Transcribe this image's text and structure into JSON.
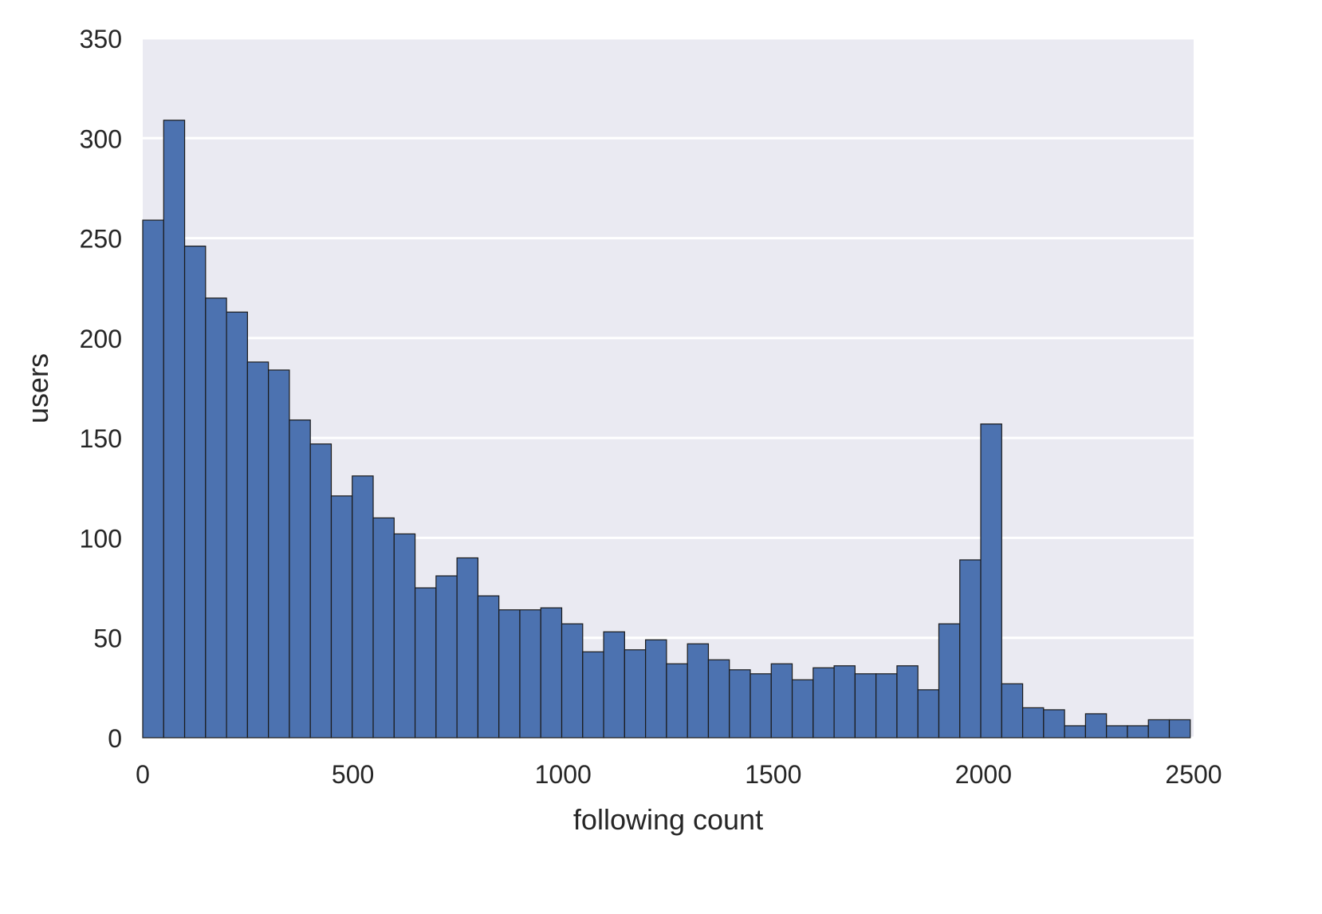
{
  "chart_data": {
    "type": "bar",
    "subtype": "histogram",
    "title": "",
    "xlabel": "following count",
    "ylabel": "users",
    "xlim": [
      0,
      2500
    ],
    "ylim": [
      0,
      350
    ],
    "xticks": [
      0,
      500,
      1000,
      1500,
      2000,
      2500
    ],
    "yticks": [
      0,
      50,
      100,
      150,
      200,
      250,
      300,
      350
    ],
    "bin_range": [
      0,
      2492
    ],
    "grid": "horizontal",
    "background_color": "#EAEAF2",
    "bar_color": "#4C72B0",
    "edge_color": "#1a1a1a",
    "values": [
      259,
      309,
      246,
      220,
      213,
      188,
      184,
      159,
      147,
      121,
      131,
      110,
      102,
      75,
      81,
      90,
      71,
      64,
      64,
      65,
      57,
      43,
      53,
      44,
      49,
      37,
      47,
      39,
      34,
      32,
      37,
      29,
      35,
      36,
      32,
      32,
      36,
      24,
      57,
      89,
      157,
      27,
      15,
      14,
      6,
      12,
      6,
      6,
      9,
      9
    ]
  }
}
